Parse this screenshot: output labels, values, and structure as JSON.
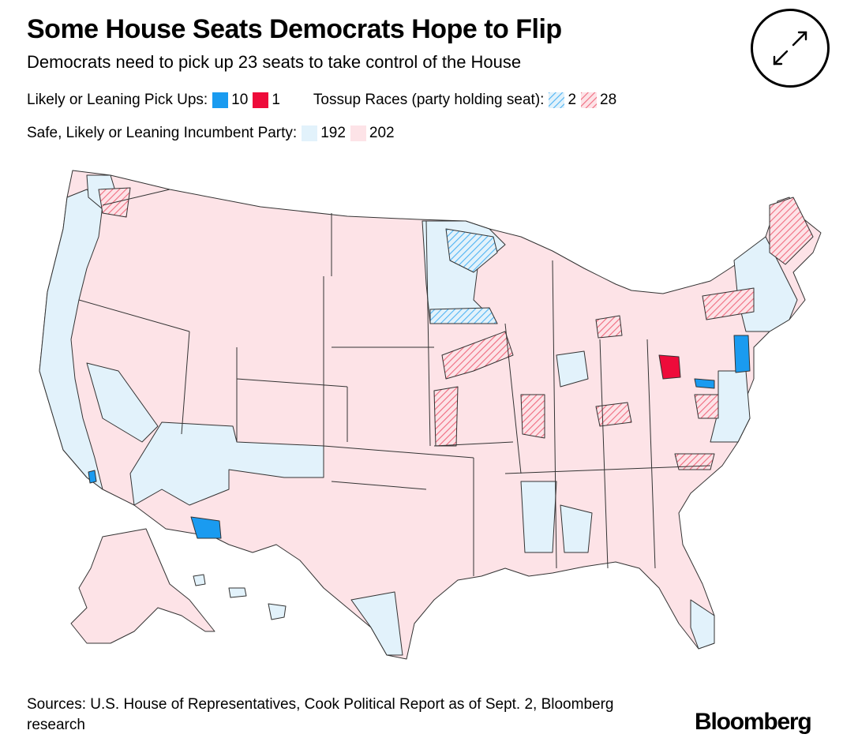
{
  "title": "Some House Seats Democrats Hope to Flip",
  "subtitle": "Democrats need to pick up 23 seats to take control of the House",
  "legend": {
    "pickups_label": "Likely or Leaning Pick Ups:",
    "pickups_dem_count": "10",
    "pickups_rep_count": "1",
    "tossup_label": "Tossup Races (party holding seat):",
    "tossup_dem_count": "2",
    "tossup_rep_count": "28",
    "safe_label": "Safe, Likely or Leaning Incumbent Party:",
    "safe_dem_count": "192",
    "safe_rep_count": "202"
  },
  "colors": {
    "dem_pickup": "#1a9bf0",
    "rep_pickup": "#ee0b3a",
    "dem_tossup": "#4fb3f3",
    "rep_tossup": "#f06b7f",
    "dem_safe": "#e2f2fb",
    "rep_safe": "#fde3e7",
    "border": "#333333"
  },
  "sources": "Sources: U.S. House of Representatives, Cook Political Report as of Sept. 2, Bloomberg research",
  "logo_text": "Bloomberg",
  "icons": {
    "expand": "expand-arrows-icon"
  }
}
